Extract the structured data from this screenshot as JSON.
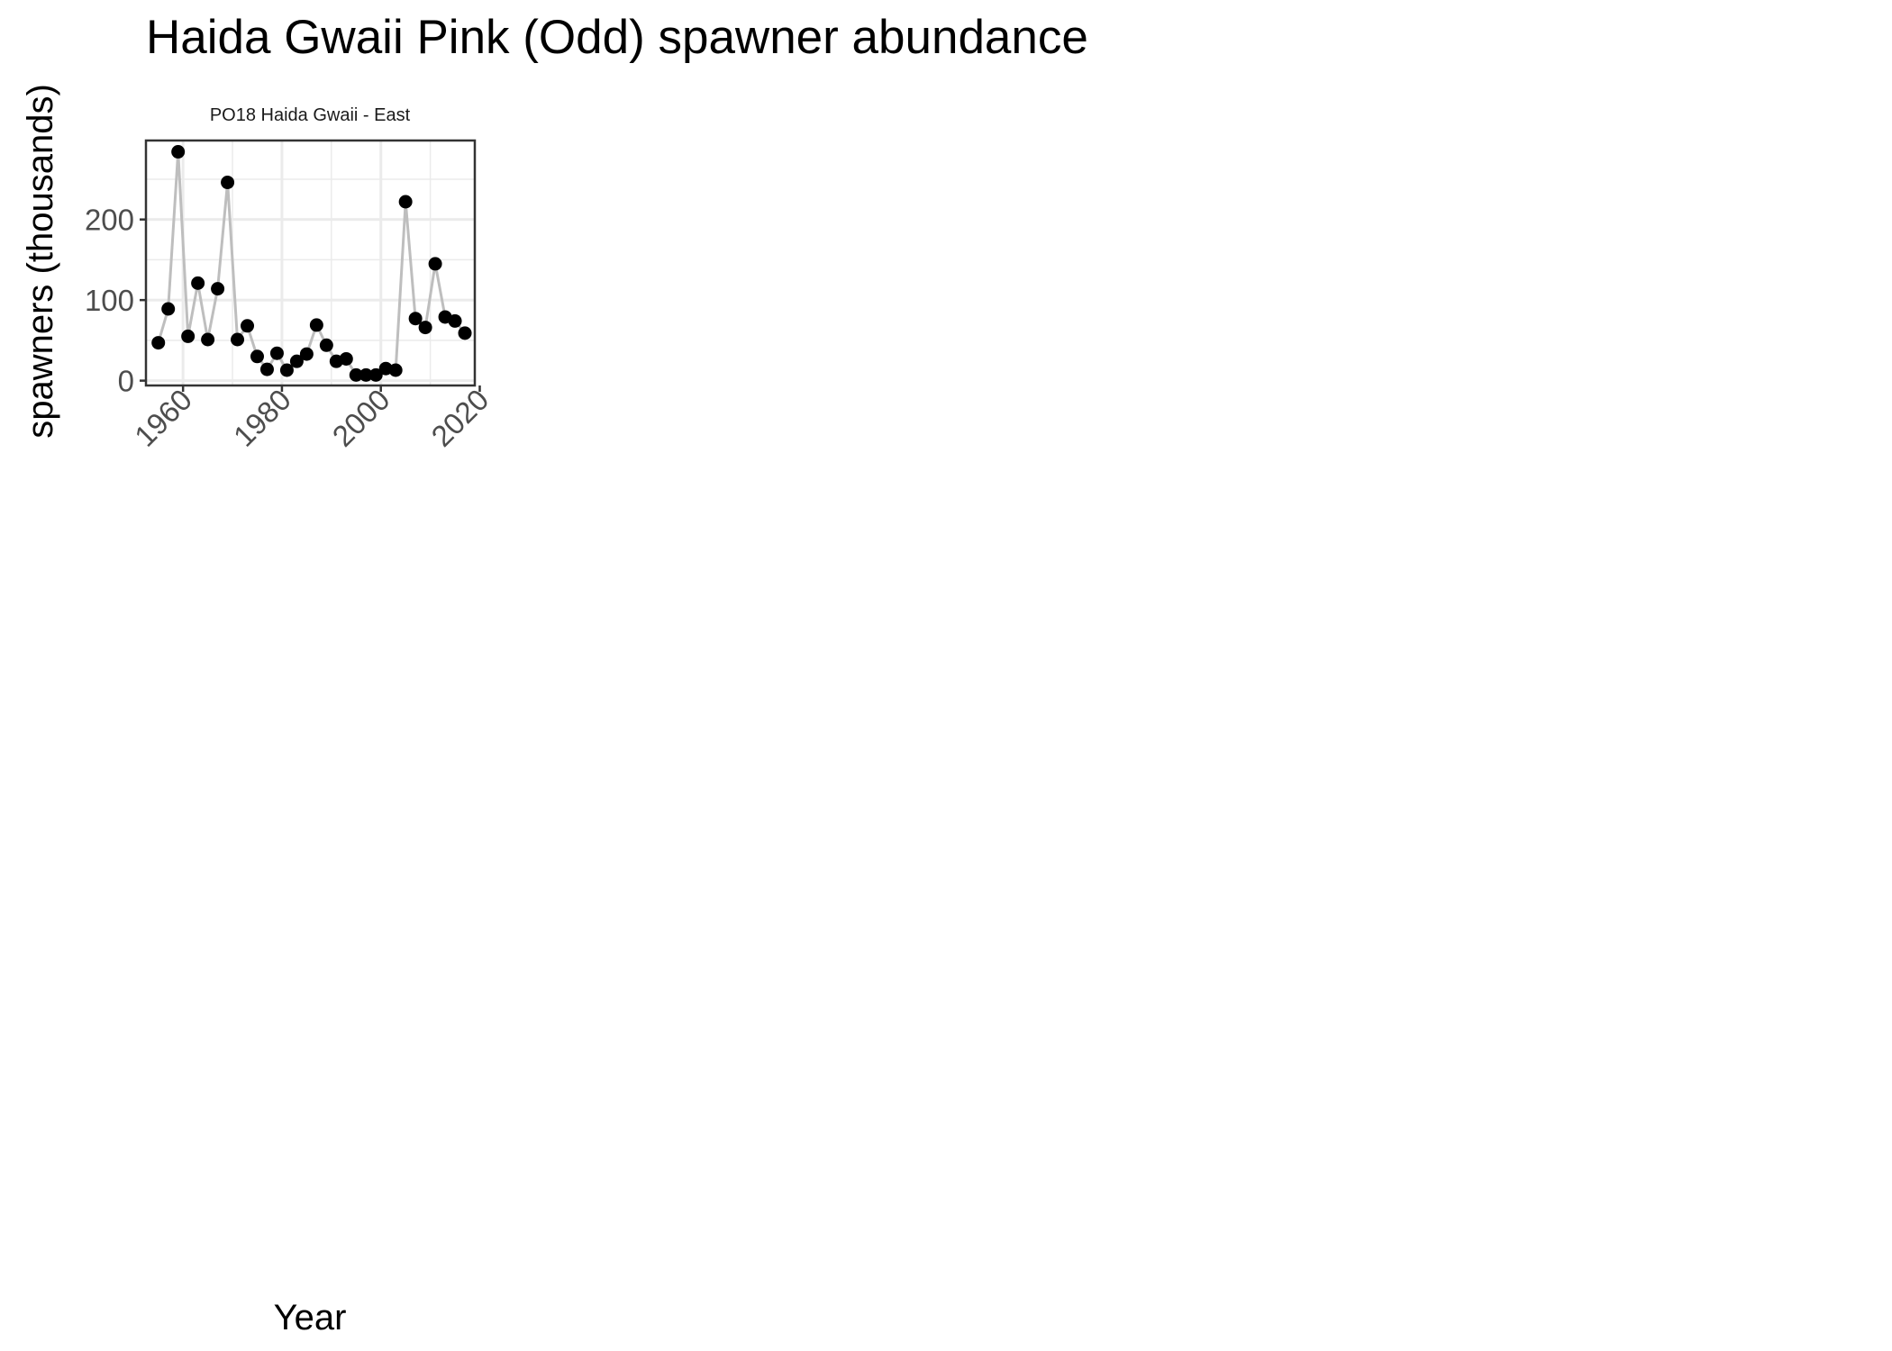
{
  "chart_data": {
    "type": "line",
    "title": "Haida Gwaii Pink (Odd) spawner abundance",
    "panel_title": "PO18 Haida Gwaii - East",
    "xlabel": "Year",
    "ylabel": "spawners (thousands)",
    "xlim": [
      1952.5,
      2019
    ],
    "ylim": [
      -6,
      298
    ],
    "x_ticks": [
      1960,
      1980,
      2000,
      2020
    ],
    "y_ticks": [
      0,
      100,
      200
    ],
    "grid": true,
    "legend": "none",
    "colors": {
      "line": "#bebebe",
      "point": "#000000",
      "grid": "#ebebeb",
      "border": "#333333"
    },
    "series": [
      {
        "x": [
          1955,
          1957,
          1959,
          1961,
          1963,
          1965,
          1967,
          1969,
          1971,
          1973,
          1975,
          1977,
          1979,
          1981,
          1983,
          1985,
          1987,
          1989,
          1991,
          1993,
          1995,
          1997,
          1999,
          2001,
          2003,
          2005,
          2007,
          2009,
          2011,
          2013,
          2015,
          2017
        ],
        "y": [
          47,
          89,
          284,
          55,
          121,
          51,
          114,
          246,
          51,
          68,
          30,
          14,
          34,
          13,
          24,
          33,
          69,
          44,
          24,
          27,
          7,
          7,
          7,
          15,
          13,
          222,
          77,
          66,
          145,
          79,
          74,
          59
        ]
      }
    ]
  }
}
